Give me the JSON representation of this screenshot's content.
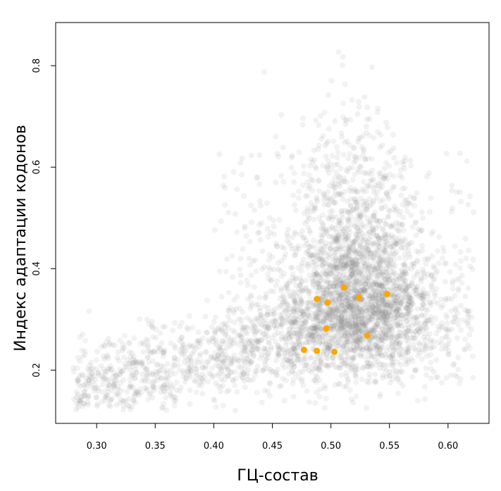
{
  "chart_data": {
    "type": "scatter",
    "title": "",
    "xlabel": "ГЦ-состав",
    "ylabel": "Индекс адаптации кодонов",
    "xlim": [
      0.265,
      0.635
    ],
    "ylim": [
      0.095,
      0.885
    ],
    "xticks": [
      0.3,
      0.35,
      0.4,
      0.45,
      0.5,
      0.55,
      0.6
    ],
    "yticks": [
      0.2,
      0.4,
      0.6,
      0.8
    ],
    "xtick_labels": [
      "0.30",
      "0.35",
      "0.40",
      "0.45",
      "0.50",
      "0.55",
      "0.60"
    ],
    "ytick_labels": [
      "0.2",
      "0.4",
      "0.6",
      "0.8"
    ],
    "grid": false,
    "legend": "none",
    "background_cloud": {
      "count": 4200,
      "color": "#808080",
      "description_for_rendering_only": ""
    },
    "series": [
      {
        "color": "#FFA500",
        "x": [
          0.477,
          0.488,
          0.488,
          0.496,
          0.497,
          0.503,
          0.511,
          0.524,
          0.531,
          0.548
        ],
        "y": [
          0.24,
          0.238,
          0.34,
          0.282,
          0.333,
          0.236,
          0.363,
          0.343,
          0.268,
          0.35
        ]
      }
    ]
  }
}
